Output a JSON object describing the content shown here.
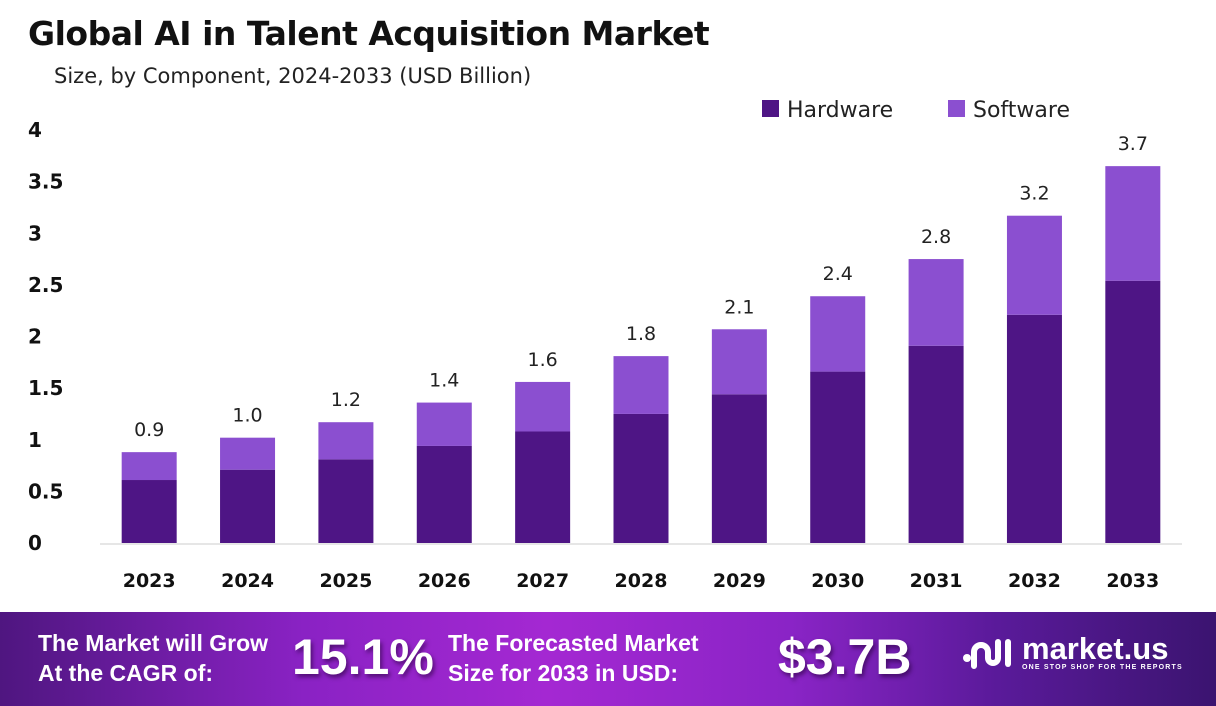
{
  "chart_data": {
    "type": "bar",
    "stacked": true,
    "title": "Global AI in Talent Acquisition Market",
    "subtitle": "Size, by Component, 2024-2033 (USD Billion)",
    "categories": [
      "2023",
      "2024",
      "2025",
      "2026",
      "2027",
      "2028",
      "2029",
      "2030",
      "2031",
      "2032",
      "2033"
    ],
    "series": [
      {
        "name": "Hardware",
        "color": "#4e1585",
        "values": [
          0.61,
          0.71,
          0.81,
          0.94,
          1.08,
          1.25,
          1.44,
          1.66,
          1.91,
          2.21,
          2.54
        ]
      },
      {
        "name": "Software",
        "color": "#8b4fd0",
        "values": [
          0.27,
          0.31,
          0.36,
          0.42,
          0.48,
          0.56,
          0.63,
          0.73,
          0.84,
          0.96,
          1.11
        ]
      }
    ],
    "totals_labels": [
      "0.9",
      "1.0",
      "1.2",
      "1.4",
      "1.6",
      "1.8",
      "2.1",
      "2.4",
      "2.8",
      "3.2",
      "3.7"
    ],
    "ylim": [
      0,
      4
    ],
    "yticks": [
      "0",
      "0.5",
      "1",
      "1.5",
      "2",
      "2.5",
      "3",
      "3.5",
      "4"
    ],
    "grid": false,
    "legend_position": "top-right"
  },
  "banner": {
    "cagr_label_line1": "The Market will Grow",
    "cagr_label_line2": "At the CAGR of:",
    "cagr_value": "15.1%",
    "forecast_label_line1": "The Forecasted Market",
    "forecast_label_line2": "Size for 2033 in USD:",
    "forecast_value": "$3.7B",
    "logo_text": "market.us",
    "logo_tagline": "ONE STOP SHOP FOR THE REPORTS"
  }
}
